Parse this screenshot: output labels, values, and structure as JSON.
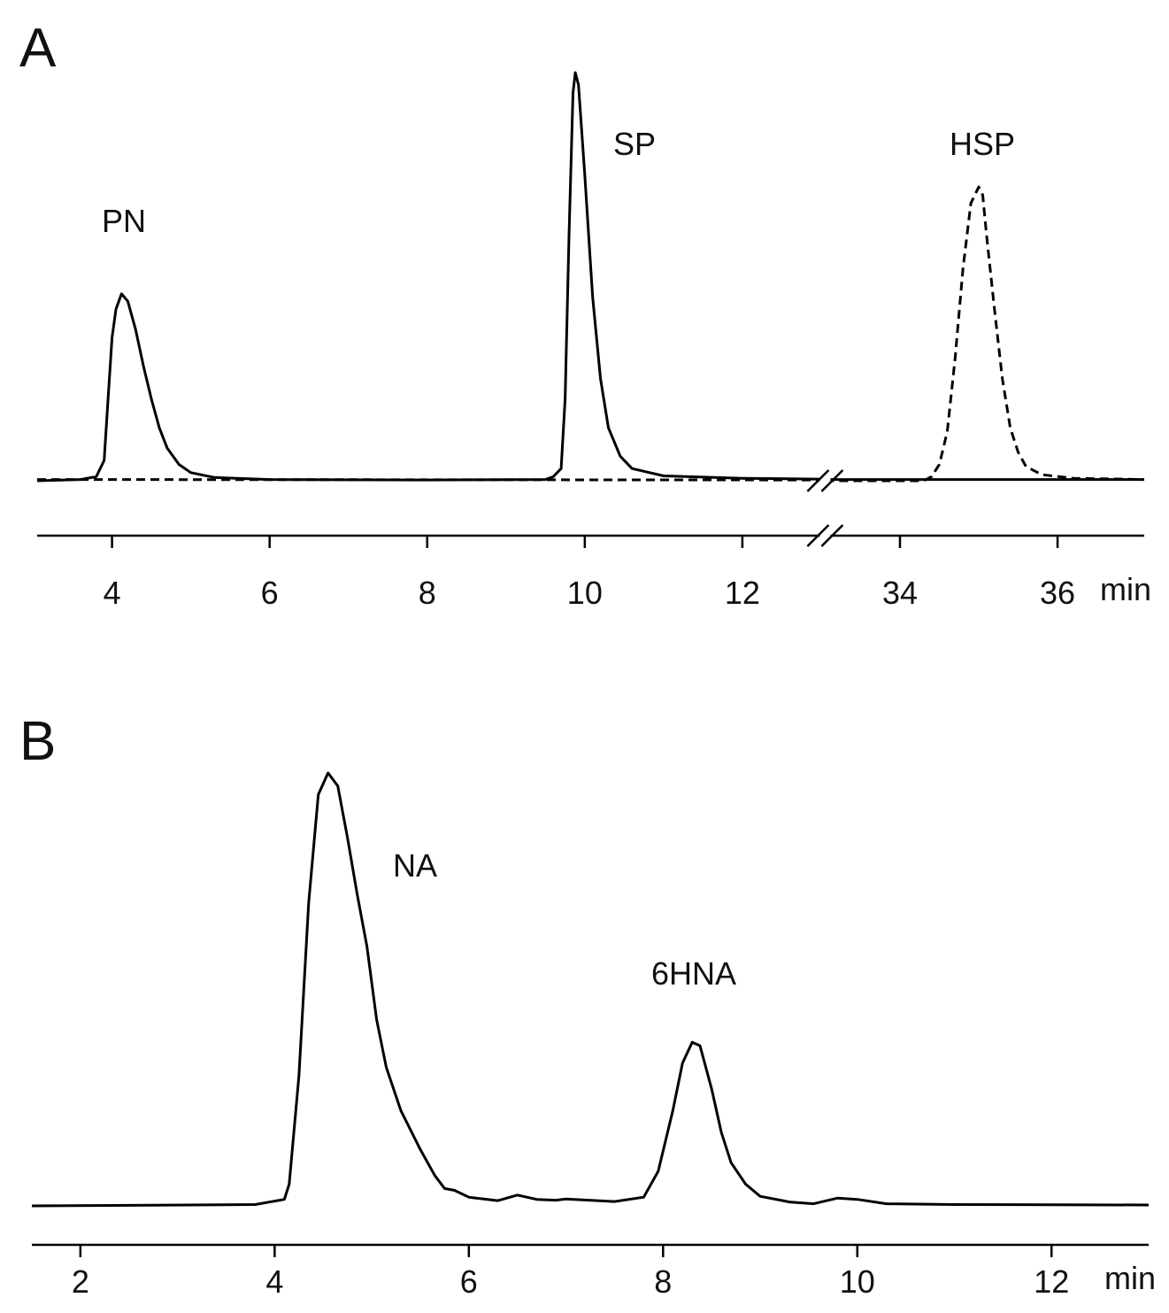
{
  "chart_data": [
    {
      "type": "line",
      "panel_label": "A",
      "x_unit": "min",
      "xlim": [
        3.05,
        37.1
      ],
      "xbreak": [
        13.05,
        33.05
      ],
      "xticks": [
        4,
        6,
        8,
        10,
        12,
        34,
        36
      ],
      "ylim": [
        0,
        100
      ],
      "annotations": [
        "PN",
        "SP",
        "HSP"
      ],
      "series": [
        {
          "color": "#000000",
          "dashed": false,
          "x": [
            3.05,
            3.6,
            3.8,
            3.9,
            3.95,
            4.0,
            4.05,
            4.12,
            4.2,
            4.3,
            4.4,
            4.5,
            4.6,
            4.7,
            4.85,
            5.0,
            5.3,
            6,
            8,
            9.5,
            9.6,
            9.7,
            9.75,
            9.8,
            9.85,
            9.88,
            9.92,
            10.0,
            10.1,
            10.2,
            10.3,
            10.45,
            10.6,
            11,
            12,
            13.05,
            33.05,
            37.1
          ],
          "values": [
            0,
            0.3,
            1,
            5,
            20,
            35,
            42,
            45.8,
            44,
            37,
            28,
            20,
            13,
            8,
            4,
            2,
            0.8,
            0.3,
            0.2,
            0.3,
            1,
            3,
            20,
            60,
            95,
            100,
            97,
            75,
            45,
            25,
            13,
            6,
            3,
            1.2,
            0.6,
            0.4,
            0.3,
            0.3
          ]
        },
        {
          "color": "#000000",
          "dashed": true,
          "x": [
            3.05,
            13.05,
            33.05,
            34.3,
            34.4,
            34.5,
            34.6,
            34.7,
            34.8,
            34.9,
            35.0,
            35.05,
            35.1,
            35.2,
            35.3,
            35.4,
            35.5,
            35.6,
            35.8,
            36.2,
            37.1
          ],
          "values": [
            0.3,
            0.2,
            0,
            0,
            1,
            4,
            12,
            30,
            52,
            68,
            72,
            70,
            60,
            42,
            25,
            13,
            7,
            3.5,
            1.5,
            0.6,
            0.3
          ]
        }
      ]
    },
    {
      "type": "line",
      "panel_label": "B",
      "x_unit": "min",
      "xlim": [
        1.5,
        13.0
      ],
      "xticks": [
        2,
        4,
        6,
        8,
        10,
        12
      ],
      "ylim": [
        0,
        100
      ],
      "annotations": [
        "NA",
        "6HNA"
      ],
      "series": [
        {
          "color": "#000000",
          "dashed": false,
          "x": [
            1.5,
            3.8,
            4.1,
            4.15,
            4.25,
            4.35,
            4.45,
            4.55,
            4.65,
            4.75,
            4.85,
            4.95,
            5.05,
            5.15,
            5.3,
            5.5,
            5.65,
            5.75,
            5.85,
            6.0,
            6.3,
            6.5,
            6.7,
            6.9,
            7.0,
            7.5,
            7.8,
            7.95,
            8.1,
            8.2,
            8.3,
            8.38,
            8.5,
            8.6,
            8.7,
            8.85,
            9.0,
            9.3,
            9.55,
            9.8,
            10.0,
            10.3,
            11,
            13
          ],
          "values": [
            0,
            0.3,
            1.5,
            5,
            30,
            70,
            95,
            100,
            97,
            85,
            72,
            60,
            43,
            32,
            22,
            13,
            7,
            4,
            3.6,
            2,
            1.2,
            2.5,
            1.5,
            1.3,
            1.6,
            1,
            2,
            8,
            22,
            33,
            37.8,
            37,
            27,
            17,
            10,
            5,
            2.2,
            0.9,
            0.5,
            1.8,
            1.5,
            0.5,
            0.3,
            0.2
          ]
        }
      ]
    }
  ]
}
